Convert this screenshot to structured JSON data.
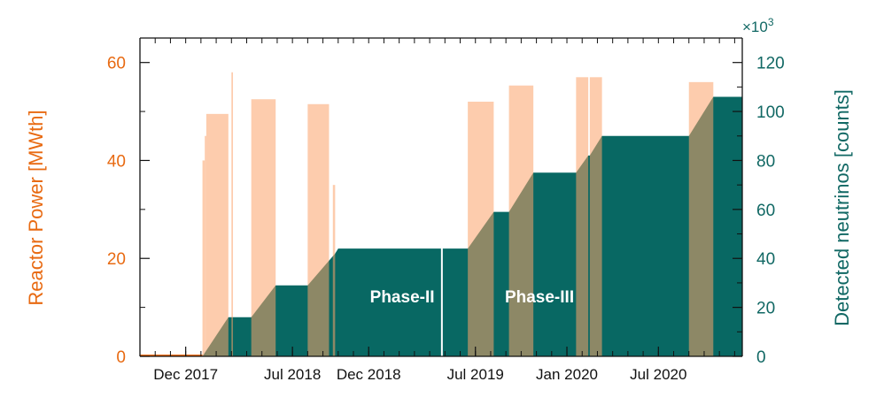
{
  "chart_data": {
    "type": "area",
    "title": "",
    "x_unit": "months since 2017-09-01",
    "xlim": [
      0,
      39.5
    ],
    "x_ticks": [
      {
        "label": "Dec 2017",
        "x": 3
      },
      {
        "label": "Jul 2018",
        "x": 10
      },
      {
        "label": "Dec 2018",
        "x": 15
      },
      {
        "label": "Jul 2019",
        "x": 22
      },
      {
        "label": "Jan 2020",
        "x": 28
      },
      {
        "label": "Jul 2020",
        "x": 34
      }
    ],
    "y_left": {
      "label": "Reactor Power [MWth]",
      "ylim": [
        0,
        65
      ],
      "ticks": [
        "0",
        "20",
        "40",
        "60"
      ],
      "color": "#e86a12"
    },
    "y_right": {
      "label": "Detected neutrinos [counts]",
      "multiplier": "×10",
      "multiplier_exp": "3",
      "ylim": [
        0,
        130
      ],
      "ticks": [
        "0",
        "20",
        "40",
        "60",
        "80",
        "100",
        "120"
      ],
      "color": "#116864"
    },
    "series": [
      {
        "name": "Reactor Power",
        "axis": "left",
        "color": "#fba26a",
        "segments": [
          {
            "x0": 0.0,
            "x1": 4.1,
            "value": 0
          },
          {
            "x0": 4.1,
            "x1": 4.25,
            "value": 40
          },
          {
            "x0": 4.25,
            "x1": 4.35,
            "value": 45
          },
          {
            "x0": 4.35,
            "x1": 5.8,
            "value": 49.5
          },
          {
            "x0": 6.0,
            "x1": 6.1,
            "value": 58
          },
          {
            "x0": 7.3,
            "x1": 8.9,
            "value": 52.5
          },
          {
            "x0": 11.0,
            "x1": 12.4,
            "value": 51.5
          },
          {
            "x0": 12.65,
            "x1": 12.8,
            "value": 35
          },
          {
            "x0": 21.5,
            "x1": 23.2,
            "value": 52
          },
          {
            "x0": 24.2,
            "x1": 25.8,
            "value": 55.3
          },
          {
            "x0": 28.6,
            "x1": 29.4,
            "value": 57
          },
          {
            "x0": 29.5,
            "x1": 30.3,
            "value": 57
          },
          {
            "x0": 36.0,
            "x1": 37.6,
            "value": 56
          }
        ]
      },
      {
        "name": "Detected neutrinos",
        "axis": "right",
        "unit": "counts ×10^3",
        "color": "#086863",
        "points": [
          [
            0,
            0
          ],
          [
            4.1,
            0
          ],
          [
            5.8,
            16
          ],
          [
            7.3,
            16
          ],
          [
            8.9,
            29
          ],
          [
            11.0,
            29
          ],
          [
            12.8,
            42
          ],
          [
            13.0,
            44
          ],
          [
            21.5,
            44
          ],
          [
            23.2,
            59
          ],
          [
            24.2,
            59
          ],
          [
            25.8,
            75
          ],
          [
            28.6,
            75
          ],
          [
            29.4,
            82
          ],
          [
            29.5,
            82
          ],
          [
            30.3,
            90
          ],
          [
            36.0,
            90
          ],
          [
            37.6,
            106
          ],
          [
            39.5,
            106
          ]
        ]
      }
    ],
    "gaps": [
      {
        "x": 19.8,
        "note": "white vertical divider between phases"
      }
    ],
    "annotations": [
      {
        "text": "Phase-II",
        "x": 17.2,
        "y_right": 22
      },
      {
        "text": "Phase-III",
        "x": 26.2,
        "y_right": 22
      }
    ]
  }
}
